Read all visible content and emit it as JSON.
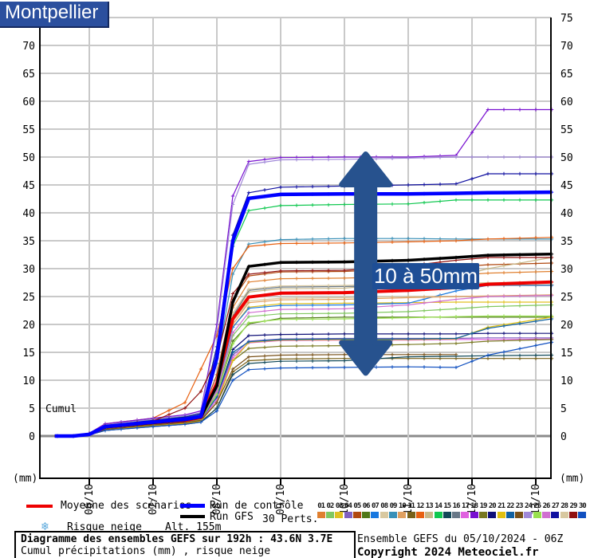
{
  "header": {
    "title": "Montpellier"
  },
  "annotation": {
    "label": "10 à 50mm",
    "box_color": "#1e4e96",
    "arrow_color": "#27528e",
    "span_mm": [
      11.3,
      50.5
    ],
    "x_hour": 122
  },
  "legend": {
    "mean_label": "Moyenne des scénarios",
    "mean_color": "#ee0000",
    "control_label": "Run de contrôle",
    "control_color": "#0000ff",
    "gfs_label": "Run GFS",
    "gfs_color": "#000000",
    "perts_label": "30 Perts.",
    "snow_icon": "snowflake",
    "snow_label": "Risque neige",
    "altitude_label": "Alt. 155m"
  },
  "perturbations": {
    "numbers": [
      "01",
      "02",
      "03",
      "04",
      "05",
      "06",
      "07",
      "08",
      "09",
      "10",
      "11",
      "12",
      "13",
      "14",
      "15",
      "16",
      "17",
      "18",
      "19",
      "20",
      "21",
      "22",
      "23",
      "24",
      "25",
      "26",
      "27",
      "28",
      "29",
      "30"
    ],
    "colors": [
      "#e08030",
      "#80c860",
      "#e0c020",
      "#8060c0",
      "#b04810",
      "#507818",
      "#1878e0",
      "#d8c8a0",
      "#3890b8",
      "#e0a060",
      "#786018",
      "#e86010",
      "#c8b888",
      "#10c850",
      "#104858",
      "#687888",
      "#e060e0",
      "#7810d0",
      "#787820",
      "#101078",
      "#e0c010",
      "#1060a0",
      "#785018",
      "#a088d8",
      "#98e050",
      "#d070d0",
      "#1010a0",
      "#d8c8a0",
      "#901010",
      "#1050c0"
    ]
  },
  "footer": {
    "line1": "Diagramme des ensembles GEFS sur 192h : 43.6N 3.7E",
    "line2": "Cumul précipitations (mm) , risque neige",
    "run_info": "Ensemble GEFS du 05/10/2024 - 06Z",
    "copyright": "Copyright 2024 Meteociel.fr"
  },
  "chart_data": {
    "type": "line",
    "title": "Montpellier",
    "xlabel": "",
    "ylabel": "(mm)",
    "cumul_label": "Cumul",
    "ylim": [
      0,
      75
    ],
    "grid": true,
    "legend_position": "bottom",
    "y_ticks_left": [
      0,
      5,
      10,
      15,
      20,
      25,
      30,
      35,
      40,
      45,
      50,
      55,
      60,
      65,
      70
    ],
    "y_ticks_right": [
      0,
      5,
      10,
      15,
      20,
      25,
      30,
      35,
      40,
      45,
      50,
      55,
      60,
      65,
      70,
      75
    ],
    "x_ticks": [
      {
        "t": 18,
        "label": "06/10"
      },
      {
        "t": 42,
        "label": "07/10"
      },
      {
        "t": 66,
        "label": "08/10"
      },
      {
        "t": 90,
        "label": "09/10"
      },
      {
        "t": 114,
        "label": "10/10"
      },
      {
        "t": 138,
        "label": "11/10"
      },
      {
        "t": 162,
        "label": "12/10"
      },
      {
        "t": 186,
        "label": "13/10"
      }
    ],
    "hours": [
      5,
      12,
      18,
      24,
      42,
      54,
      60,
      66,
      72,
      78,
      90,
      114,
      138,
      156,
      168,
      192
    ],
    "series": [
      {
        "name": "Pert 01",
        "color": "#e08030",
        "width": 1.2,
        "values": [
          0,
          0,
          0.3,
          1.7,
          2.5,
          3,
          3.4,
          10,
          23,
          27.6,
          28.2,
          28.3,
          28.6,
          28.8,
          29.2,
          29.5
        ]
      },
      {
        "name": "Pert 02",
        "color": "#80c860",
        "width": 1.2,
        "values": [
          0,
          0,
          0.2,
          1.4,
          2.2,
          2.6,
          3,
          8,
          18,
          21.4,
          21.9,
          22,
          22.3,
          22.8,
          23.2,
          23.5
        ]
      },
      {
        "name": "Pert 03",
        "color": "#e0c020",
        "width": 1.2,
        "values": [
          0,
          0,
          0.3,
          1.5,
          2.3,
          2.7,
          3.1,
          8.5,
          19.5,
          23.1,
          23.7,
          23.8,
          23.9,
          24,
          24,
          24
        ]
      },
      {
        "name": "Pert 04",
        "color": "#8060c0",
        "width": 1.2,
        "values": [
          0,
          0,
          0.2,
          1.3,
          2.1,
          2.5,
          2.9,
          6.5,
          14.5,
          17,
          17.4,
          17.5,
          17.5,
          17.5,
          17.6,
          17.6
        ]
      },
      {
        "name": "Pert 05",
        "color": "#b04810",
        "width": 1.2,
        "values": [
          0,
          0,
          0.4,
          1.8,
          2.6,
          3.1,
          3.6,
          11,
          24.5,
          28.7,
          29.4,
          29.5,
          30,
          30.3,
          30.7,
          31
        ]
      },
      {
        "name": "Pert 06",
        "color": "#507818",
        "width": 1.2,
        "values": [
          0,
          0,
          0.2,
          1.4,
          2.2,
          2.6,
          3,
          7.5,
          17,
          20.1,
          21.1,
          21.3,
          21.3,
          21.3,
          21.3,
          21.3
        ]
      },
      {
        "name": "Pert 07",
        "color": "#1878e0",
        "width": 1.2,
        "values": [
          0,
          0,
          0.3,
          1.5,
          2.3,
          2.8,
          3.2,
          8.5,
          19.5,
          22.9,
          23.4,
          23.5,
          23.8,
          26,
          27,
          27
        ]
      },
      {
        "name": "Pert 08",
        "color": "#d8c8a0",
        "width": 1.2,
        "values": [
          0,
          0,
          0.3,
          1.6,
          2.4,
          2.9,
          3.3,
          9,
          20.5,
          24.2,
          24.7,
          24.8,
          25,
          25,
          25.1,
          25.2
        ]
      },
      {
        "name": "Pert 09",
        "color": "#3890b8",
        "width": 1.2,
        "values": [
          0,
          0,
          0.4,
          1.9,
          2.8,
          3.3,
          3.8,
          13,
          29,
          34.4,
          35.2,
          35.4,
          35.4,
          35.3,
          35.3,
          35.3
        ]
      },
      {
        "name": "Pert 10",
        "color": "#e0a060",
        "width": 1.2,
        "values": [
          0,
          0,
          0.3,
          1.6,
          2.4,
          2.9,
          3.3,
          9,
          20,
          23.9,
          24.4,
          24.5,
          24.8,
          25,
          25.1,
          25.3
        ]
      },
      {
        "name": "Pert 11",
        "color": "#786018",
        "width": 1.2,
        "values": [
          0,
          0,
          0.2,
          1,
          1.8,
          2.2,
          2.6,
          5,
          11.5,
          13.5,
          13.8,
          13.9,
          13.9,
          13.9,
          13.9,
          13.9
        ]
      },
      {
        "name": "Pert 12",
        "color": "#e86010",
        "width": 1.2,
        "values": [
          0,
          0,
          0.5,
          2.2,
          3.2,
          6,
          12,
          18,
          30,
          34,
          34.5,
          34.6,
          34.8,
          35,
          35.3,
          35.6
        ]
      },
      {
        "name": "Pert 13",
        "color": "#c8b888",
        "width": 1.2,
        "values": [
          0,
          0,
          0.3,
          1.6,
          2.4,
          2.9,
          3.4,
          9.5,
          21.5,
          25.8,
          26.4,
          26.5,
          27.5,
          28.5,
          30,
          32
        ]
      },
      {
        "name": "Pert 14",
        "color": "#10c850",
        "width": 1.2,
        "values": [
          0,
          0,
          0.4,
          2,
          3,
          3.5,
          4,
          16,
          34,
          40.4,
          41.3,
          41.5,
          41.6,
          42.3,
          42.3,
          42.3
        ]
      },
      {
        "name": "Pert 15",
        "color": "#104858",
        "width": 1.2,
        "values": [
          0,
          0,
          0.2,
          1,
          1.7,
          2.1,
          2.5,
          5,
          11,
          13,
          13.4,
          13.5,
          14.2,
          14.3,
          14.4,
          14.5
        ]
      },
      {
        "name": "Pert 16",
        "color": "#687888",
        "width": 1.2,
        "values": [
          0,
          0,
          0.3,
          1.6,
          2.4,
          2.9,
          3.4,
          9.5,
          21.5,
          26.1,
          26.7,
          26.8,
          26.9,
          27,
          27,
          27.1
        ]
      },
      {
        "name": "Pert 17",
        "color": "#e060e0",
        "width": 1.2,
        "values": [
          0,
          0,
          0.2,
          1.3,
          2.1,
          2.5,
          2.9,
          6.5,
          14,
          16.7,
          17.1,
          17.2,
          17.2,
          17.3,
          17.3,
          17.4
        ]
      },
      {
        "name": "Pert 18",
        "color": "#7810d0",
        "width": 1.2,
        "values": [
          0,
          0,
          0.5,
          2.2,
          3.2,
          3.8,
          4.5,
          20,
          43,
          49.2,
          49.9,
          50,
          50,
          50.3,
          58.5,
          58.5
        ]
      },
      {
        "name": "Pert 19",
        "color": "#787820",
        "width": 1.2,
        "values": [
          0,
          0,
          0.2,
          1.2,
          2,
          2.4,
          2.8,
          6,
          13.5,
          15.7,
          16.1,
          16.2,
          16.4,
          16.6,
          17,
          17.3
        ]
      },
      {
        "name": "Pert 20",
        "color": "#101078",
        "width": 1.2,
        "values": [
          0,
          0,
          0.3,
          1.4,
          2.2,
          2.6,
          3,
          7,
          15.5,
          18,
          18.2,
          18.3,
          18.3,
          18.3,
          18.4,
          18.4
        ]
      },
      {
        "name": "Pert 21",
        "color": "#e0c010",
        "width": 1.2,
        "values": [
          0,
          0,
          0.2,
          1.1,
          1.9,
          2.3,
          2.7,
          6,
          13.5,
          16.8,
          17.2,
          17.3,
          17.3,
          17.4,
          19.5,
          21.3
        ]
      },
      {
        "name": "Pert 22",
        "color": "#1060a0",
        "width": 1.2,
        "values": [
          0,
          0,
          0.3,
          1.3,
          2.1,
          2.5,
          3,
          7,
          15,
          16.9,
          17.3,
          17.4,
          17.4,
          17.5,
          19.3,
          21
        ]
      },
      {
        "name": "Pert 23",
        "color": "#785018",
        "width": 1.2,
        "values": [
          0,
          0,
          0.2,
          1.2,
          2,
          2.4,
          2.8,
          6,
          12,
          14.2,
          14.5,
          14.6,
          14.6,
          14.6,
          null,
          null
        ]
      },
      {
        "name": "Pert 24",
        "color": "#a088d8",
        "width": 1.2,
        "values": [
          0,
          0,
          0.4,
          2,
          3,
          3.6,
          4.2,
          19,
          41.5,
          48.7,
          49.5,
          49.6,
          49.8,
          50,
          50,
          50
        ]
      },
      {
        "name": "Pert 25",
        "color": "#98e050",
        "width": 1.2,
        "values": [
          0,
          0,
          0.3,
          1.4,
          2.2,
          2.6,
          3,
          7.5,
          16.5,
          20.3,
          20.9,
          21,
          21.2,
          21.4,
          21.5,
          21.5
        ]
      },
      {
        "name": "Pert 26",
        "color": "#d070d0",
        "width": 1.2,
        "values": [
          0,
          0,
          0.3,
          1.5,
          2.3,
          2.8,
          3.2,
          8,
          18.5,
          22.1,
          22.7,
          22.8,
          23.5,
          24.5,
          25,
          25.2
        ]
      },
      {
        "name": "Pert 27",
        "color": "#1010a0",
        "width": 1.2,
        "values": [
          0,
          0,
          0.4,
          1.9,
          2.8,
          3.4,
          4,
          16,
          36,
          43.6,
          44.6,
          44.8,
          45,
          45.2,
          47,
          47
        ]
      },
      {
        "name": "Pert 28",
        "color": "#d8c8a0",
        "width": 1.2,
        "values": [
          0,
          0,
          0.3,
          1.6,
          2.4,
          2.9,
          3.4,
          10,
          22,
          26.3,
          26.9,
          27,
          27.2,
          27.3,
          27.5,
          27.5
        ]
      },
      {
        "name": "Pert 29",
        "color": "#901010",
        "width": 1.2,
        "values": [
          0,
          0,
          0.4,
          1.8,
          2.7,
          5,
          8,
          14,
          25.5,
          29,
          29.6,
          29.7,
          30.5,
          31.5,
          32,
          32
        ]
      },
      {
        "name": "Pert 30",
        "color": "#1050c0",
        "width": 1.2,
        "values": [
          0,
          0,
          0.2,
          1,
          1.7,
          2.1,
          2.5,
          4.5,
          10,
          11.9,
          12.2,
          12.3,
          12.4,
          12.3,
          14.5,
          16.8
        ]
      },
      {
        "name": "Moyenne des scénarios",
        "color": "#ee0000",
        "width": 4,
        "values": [
          0,
          0,
          0.3,
          1.6,
          2.4,
          2.8,
          3.3,
          9.5,
          21,
          24.9,
          25.6,
          25.7,
          26.1,
          26.6,
          27.2,
          27.6
        ]
      },
      {
        "name": "Run GFS",
        "color": "#000000",
        "width": 3.5,
        "values": [
          0,
          0,
          0.3,
          1.6,
          2.4,
          2.9,
          3.4,
          9,
          24,
          30.4,
          31.1,
          31.2,
          31.5,
          32,
          32.4,
          32.6
        ]
      },
      {
        "name": "Run de contrôle",
        "color": "#0000ff",
        "width": 4.5,
        "values": [
          0,
          0,
          0.3,
          1.7,
          2.5,
          3,
          3.5,
          14,
          35,
          42.6,
          43.3,
          43.4,
          43.4,
          43.5,
          43.6,
          43.7
        ]
      }
    ]
  }
}
